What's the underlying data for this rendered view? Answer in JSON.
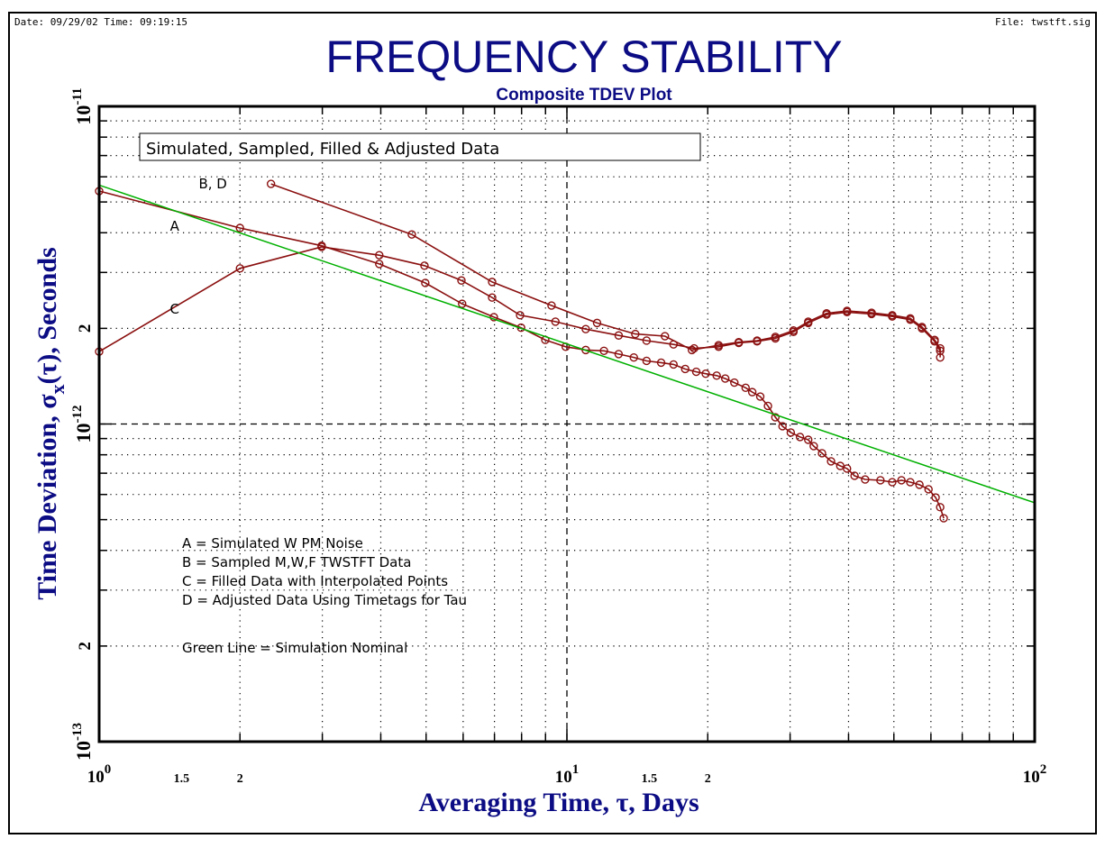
{
  "header": {
    "date_time": "Date: 09/29/02  Time: 09:19:15",
    "file": "File: twstft.sig"
  },
  "chart_data": {
    "type": "line",
    "title": "FREQUENCY STABILITY",
    "subtitle": "Composite TDEV Plot",
    "xlabel": "Averaging Time, τ, Days",
    "ylabel": {
      "pre": "Time Deviation, σ",
      "sub": "x",
      "post": "(τ), Seconds"
    },
    "x_scale": "log",
    "y_scale": "log",
    "xlim": [
      1,
      100
    ],
    "ylim": [
      1e-13,
      1e-11
    ],
    "grid": true,
    "x_ticks": [
      {
        "value": 1,
        "base": "10",
        "exp": "0"
      },
      {
        "value": 1.5,
        "label": "1.5"
      },
      {
        "value": 2,
        "label": "2"
      },
      {
        "value": 10,
        "base": "10",
        "exp": "1"
      },
      {
        "value": 15,
        "label": "1.5"
      },
      {
        "value": 20,
        "label": "2"
      },
      {
        "value": 100,
        "base": "10",
        "exp": "2"
      }
    ],
    "y_ticks": [
      {
        "value": 1e-11,
        "base": "10",
        "exp": "-11"
      },
      {
        "value": 2e-12,
        "label": "2"
      },
      {
        "value": 1e-12,
        "base": "10",
        "exp": "-12"
      },
      {
        "value": 2e-13,
        "label": "2"
      },
      {
        "value": 1e-13,
        "base": "10",
        "exp": "-13"
      }
    ],
    "box_text": "Simulated, Sampled, Filled & Adjusted Data",
    "legend_notes": [
      "A = Simulated W PM Noise",
      "B = Sampled M,W,F TWSTFT Data",
      "C = Filled Data with Interpolated Points",
      "D = Adjusted Data Using Timetags for Tau",
      "Green Line = Simulation Nominal"
    ],
    "annotations": [
      {
        "text": "B, D",
        "x": 1.75,
        "y": 5.7e-12
      },
      {
        "text": "A",
        "x": 1.45,
        "y": 4.2e-12
      },
      {
        "text": "C",
        "x": 1.45,
        "y": 2.3e-12
      }
    ],
    "colors": {
      "data": "#8b1010",
      "nominal": "#00b000",
      "title": "#0c0c84"
    },
    "series": [
      {
        "id": "A",
        "x": [
          1,
          2,
          2.99,
          3.97,
          4.98,
          5.97,
          6.98,
          7.98,
          8.99,
          9.94,
          10.97,
          12.0,
          12.9,
          13.9,
          14.8,
          15.9,
          16.9,
          17.9,
          18.9,
          19.8,
          20.9,
          21.8,
          22.8,
          24.1,
          24.9,
          25.9,
          26.9,
          27.9,
          28.9,
          30.1,
          31.5,
          32.8,
          33.7,
          35.1,
          36.7,
          38.4,
          39.7,
          41.2,
          43.4,
          46.8,
          49.6,
          51.9,
          54.2,
          56.7,
          59.3,
          61.4,
          62.8,
          63.9
        ],
        "y": [
          5.41e-12,
          4.14e-12,
          3.64e-12,
          3.19e-12,
          2.78e-12,
          2.39e-12,
          2.17e-12,
          2.01e-12,
          1.84e-12,
          1.75e-12,
          1.71e-12,
          1.7e-12,
          1.66e-12,
          1.62e-12,
          1.58e-12,
          1.56e-12,
          1.54e-12,
          1.49e-12,
          1.46e-12,
          1.44e-12,
          1.42e-12,
          1.39e-12,
          1.35e-12,
          1.3e-12,
          1.26e-12,
          1.22e-12,
          1.14e-12,
          1.05e-12,
          9.84e-13,
          9.4e-13,
          9.1e-13,
          8.92e-13,
          8.52e-13,
          8.09e-13,
          7.63e-13,
          7.38e-13,
          7.24e-13,
          6.87e-13,
          6.69e-13,
          6.65e-13,
          6.56e-13,
          6.65e-13,
          6.56e-13,
          6.44e-13,
          6.23e-13,
          5.87e-13,
          5.47e-13,
          5.05e-13
        ]
      },
      {
        "id": "B, D",
        "x": [
          2.33,
          4.66,
          6.92,
          9.27,
          11.6,
          14.0,
          16.2,
          18.5,
          21.1,
          23.3,
          25.5,
          27.9,
          30.5,
          32.8,
          35.9,
          39.7,
          44.8,
          49.6,
          54.2,
          57.4,
          61.1,
          62.8,
          62.8
        ],
        "y": [
          5.7e-12,
          3.95e-12,
          2.8e-12,
          2.36e-12,
          2.08e-12,
          1.92e-12,
          1.89e-12,
          1.71e-12,
          1.77e-12,
          1.81e-12,
          1.83e-12,
          1.88e-12,
          1.97e-12,
          2.1e-12,
          2.23e-12,
          2.27e-12,
          2.24e-12,
          2.2e-12,
          2.15e-12,
          2.02e-12,
          1.84e-12,
          1.73e-12,
          1.62e-12
        ]
      },
      {
        "id": "C",
        "x": [
          1,
          2,
          2.99,
          3.97,
          4.96,
          5.95,
          6.92,
          7.94,
          9.45,
          10.97,
          12.9,
          14.8,
          16.9,
          18.7,
          21.1,
          23.3,
          25.5,
          27.9,
          30.5,
          32.8,
          35.9,
          39.7,
          44.8,
          49.6,
          54.2,
          57.4,
          61.1,
          62.8
        ],
        "y": [
          1.69e-12,
          3.09e-12,
          3.61e-12,
          3.4e-12,
          3.15e-12,
          2.83e-12,
          2.5e-12,
          2.2e-12,
          2.1e-12,
          1.99e-12,
          1.9e-12,
          1.83e-12,
          1.78e-12,
          1.73e-12,
          1.75e-12,
          1.8e-12,
          1.82e-12,
          1.86e-12,
          1.95e-12,
          2.08e-12,
          2.21e-12,
          2.25e-12,
          2.22e-12,
          2.18e-12,
          2.13e-12,
          2e-12,
          1.82e-12,
          1.7e-12
        ]
      },
      {
        "id": "Green Line",
        "x": [
          1,
          100
        ],
        "y": [
          5.65e-12,
          5.65e-13
        ]
      }
    ]
  }
}
